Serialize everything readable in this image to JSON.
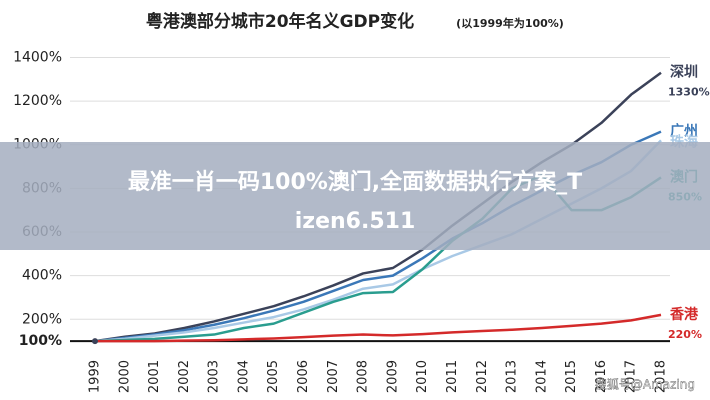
{
  "chart_data": {
    "type": "line",
    "title": "粤港澳部分城市20年名义GDP变化",
    "subtitle": "(以1999年为100%)",
    "categories": [
      "1999",
      "2000",
      "2001",
      "2002",
      "2003",
      "2004",
      "2005",
      "2006",
      "2007",
      "2008",
      "2009",
      "2010",
      "2011",
      "2012",
      "2013",
      "2014",
      "2015",
      "2016",
      "2017",
      "2018"
    ],
    "series": [
      {
        "name": "深圳",
        "color": "#3b4259",
        "values": [
          100,
          120,
          135,
          160,
          190,
          225,
          260,
          305,
          355,
          410,
          435,
          520,
          630,
          730,
          830,
          920,
          1000,
          1100,
          1230,
          1330
        ],
        "value_labels": [
          null,
          null,
          null,
          null,
          null,
          null,
          null,
          null,
          null,
          null,
          null,
          null,
          null,
          null,
          null,
          null,
          null,
          null,
          null,
          "1330%"
        ]
      },
      {
        "name": "广州",
        "color": "#3b78b8",
        "values": [
          100,
          115,
          130,
          150,
          175,
          205,
          240,
          280,
          330,
          380,
          400,
          480,
          570,
          640,
          720,
          790,
          860,
          920,
          1000,
          1060
        ]
      },
      {
        "name": "珠海",
        "color": "#a9c9e6",
        "values": [
          100,
          110,
          125,
          140,
          160,
          185,
          210,
          245,
          290,
          340,
          360,
          430,
          490,
          540,
          590,
          660,
          730,
          800,
          880,
          1020
        ]
      },
      {
        "name": "澳门",
        "color": "#2a9d8f",
        "values": [
          100,
          105,
          110,
          120,
          130,
          160,
          180,
          230,
          280,
          320,
          325,
          430,
          560,
          660,
          800,
          860,
          700,
          700,
          760,
          850
        ],
        "value_labels": [
          null,
          null,
          null,
          null,
          null,
          null,
          null,
          null,
          null,
          null,
          null,
          null,
          null,
          null,
          null,
          null,
          null,
          null,
          null,
          "850%"
        ]
      },
      {
        "name": "香港",
        "color": "#d42a2a",
        "values": [
          100,
          100,
          100,
          102,
          104,
          108,
          112,
          118,
          125,
          130,
          126,
          132,
          140,
          146,
          152,
          160,
          170,
          180,
          195,
          220
        ],
        "value_labels": [
          null,
          null,
          null,
          null,
          null,
          null,
          null,
          null,
          null,
          null,
          null,
          null,
          null,
          null,
          null,
          null,
          null,
          null,
          null,
          "220%"
        ]
      }
    ],
    "ylim": [
      50,
      1480
    ],
    "yticks": [
      {
        "value": 100,
        "label": "100%"
      },
      {
        "value": 200,
        "label": "200%"
      },
      {
        "value": 400,
        "label": "400%"
      },
      {
        "value": 600,
        "label": "600%"
      },
      {
        "value": 800,
        "label": "800%"
      },
      {
        "value": 1000,
        "label": "1000%"
      },
      {
        "value": 1200,
        "label": "1200%"
      },
      {
        "value": 1400,
        "label": "1400%"
      }
    ],
    "grid": true
  },
  "overlay": {
    "banner": [
      "最准一肖一码100%澳门,全面数据执行方案_T",
      "izen6.511"
    ],
    "watermark": "搜狐号@Amazing"
  }
}
